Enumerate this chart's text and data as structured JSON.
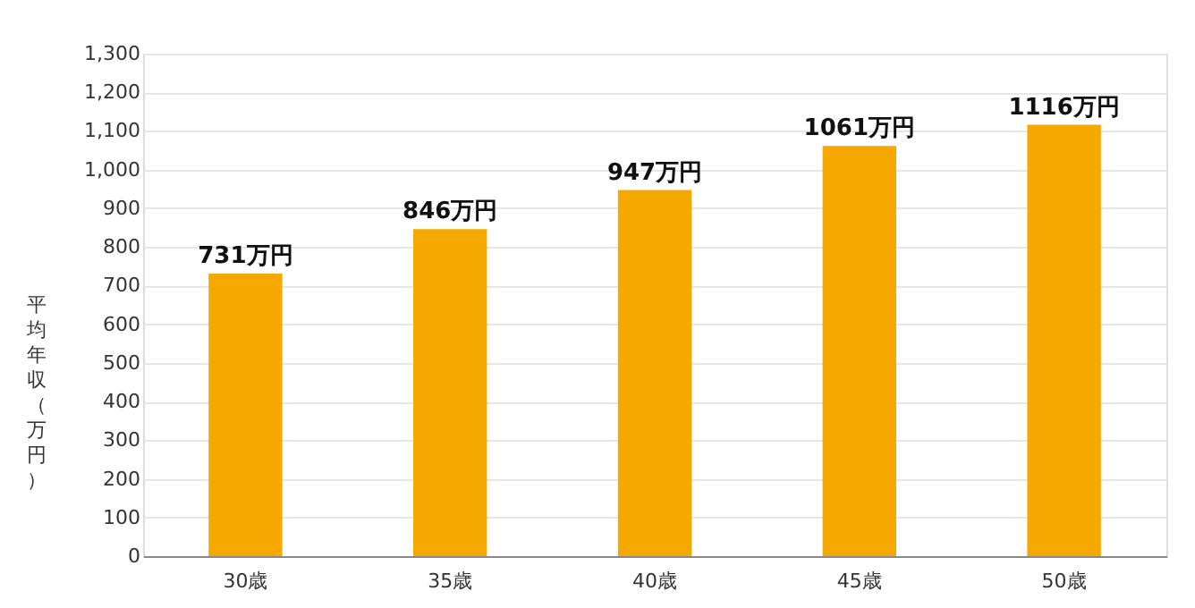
{
  "chart_data": {
    "type": "bar",
    "categories": [
      "30歳",
      "35歳",
      "40歳",
      "45歳",
      "50歳"
    ],
    "values": [
      731,
      846,
      947,
      1061,
      1116
    ],
    "value_labels": [
      "731万円",
      "846万円",
      "947万円",
      "1061万円",
      "1116万円"
    ],
    "color": "#f5a800",
    "ylabel": "平均年収（万円）",
    "ylim": [
      0,
      1300
    ],
    "yticks": [
      0,
      100,
      200,
      300,
      400,
      500,
      600,
      700,
      800,
      900,
      {
        "value": 1000,
        "label": "1,000"
      },
      {
        "value": 1100,
        "label": "1,100"
      },
      {
        "value": 1200,
        "label": "1,200"
      },
      {
        "value": 1300,
        "label": "1,300"
      }
    ],
    "grid": "y"
  }
}
